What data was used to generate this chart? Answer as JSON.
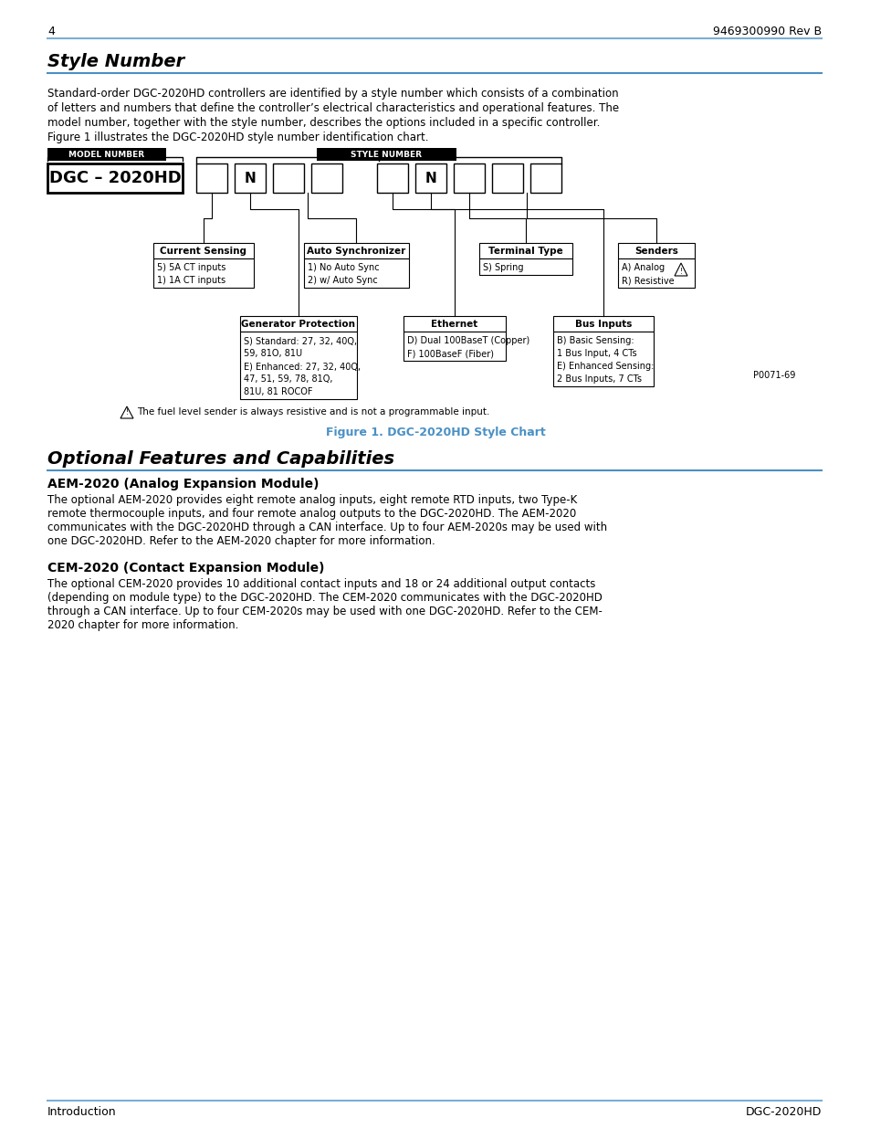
{
  "page_number": "4",
  "doc_number": "9469300990 Rev B",
  "header_line_color": "#7bafd4",
  "section1_title": "Style Number",
  "section1_underline_color": "#4a90c4",
  "intro_text_lines": [
    "Standard-order DGC-2020HD controllers are identified by a style number which consists of a combination",
    "of letters and numbers that define the controller’s electrical characteristics and operational features. The",
    "model number, together with the style number, describes the options included in a specific controller.",
    "Figure 1 illustrates the DGC-2020HD style number identification chart."
  ],
  "model_number_label": "MODEL NUMBER",
  "style_number_label": "STYLE NUMBER",
  "dgc_label": "DGC – 2020HD",
  "figure_caption": "Figure 1. DGC-2020HD Style Chart",
  "figure_caption_color": "#4a90c4",
  "warning_text": "The fuel level sender is always resistive and is not a programmable input.",
  "p_number": "P0071-69",
  "section2_title": "Optional Features and Capabilities",
  "section2_underline_color": "#4a90c4",
  "subsection1_title": "AEM-2020 (Analog Expansion Module)",
  "subsection1_text_lines": [
    "The optional AEM-2020 provides eight remote analog inputs, eight remote RTD inputs, two Type-K",
    "remote thermocouple inputs, and four remote analog outputs to the DGC-2020HD. The AEM-2020",
    "communicates with the DGC-2020HD through a CAN interface. Up to four AEM-2020s may be used with",
    "one DGC-2020HD. Refer to the AEM-2020 chapter for more information."
  ],
  "subsection2_title": "CEM-2020 (Contact Expansion Module)",
  "subsection2_text_lines": [
    "The optional CEM-2020 provides 10 additional contact inputs and 18 or 24 additional output contacts",
    "(depending on module type) to the DGC-2020HD. The CEM-2020 communicates with the DGC-2020HD",
    "through a CAN interface. Up to four CEM-2020s may be used with one DGC-2020HD. Refer to the CEM-",
    "2020 chapter for more information."
  ],
  "footer_left": "Introduction",
  "footer_right": "DGC-2020HD",
  "footer_line_color": "#7bafd4",
  "bg_color": "#ffffff",
  "text_color": "#000000"
}
